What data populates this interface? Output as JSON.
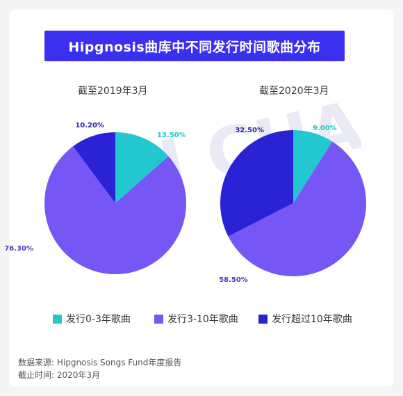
{
  "title": "Hipgnosis曲库中不同发行时间歌曲分布",
  "legend": [
    {
      "label": "发行0-3年歌曲",
      "color": "#22c7cf"
    },
    {
      "label": "发行3-10年歌曲",
      "color": "#7657f5"
    },
    {
      "label": "发行超过10年歌曲",
      "color": "#2a23d6"
    }
  ],
  "chart_data": [
    {
      "type": "pie",
      "title": "截至2019年3月",
      "labels": [
        "发行0-3年歌曲",
        "发行3-10年歌曲",
        "发行超过10年歌曲"
      ],
      "values": [
        13.5,
        76.3,
        10.2
      ],
      "value_labels": [
        "13.50%",
        "76.30%",
        "10.20%"
      ],
      "colors": [
        "#22c7cf",
        "#7657f5",
        "#2a23d6"
      ]
    },
    {
      "type": "pie",
      "title": "截至2020年3月",
      "labels": [
        "发行0-3年歌曲",
        "发行3-10年歌曲",
        "发行超过10年歌曲"
      ],
      "values": [
        9.0,
        58.5,
        32.5
      ],
      "value_labels": [
        "9.00%",
        "58.50%",
        "32.50%"
      ],
      "colors": [
        "#22c7cf",
        "#7657f5",
        "#2a23d6"
      ]
    }
  ],
  "source_line1": "数据来源: Hipgnosis Songs Fund年度报告",
  "source_line2": "截止时间: 2020年3月",
  "watermark_text": "UNI CHART"
}
